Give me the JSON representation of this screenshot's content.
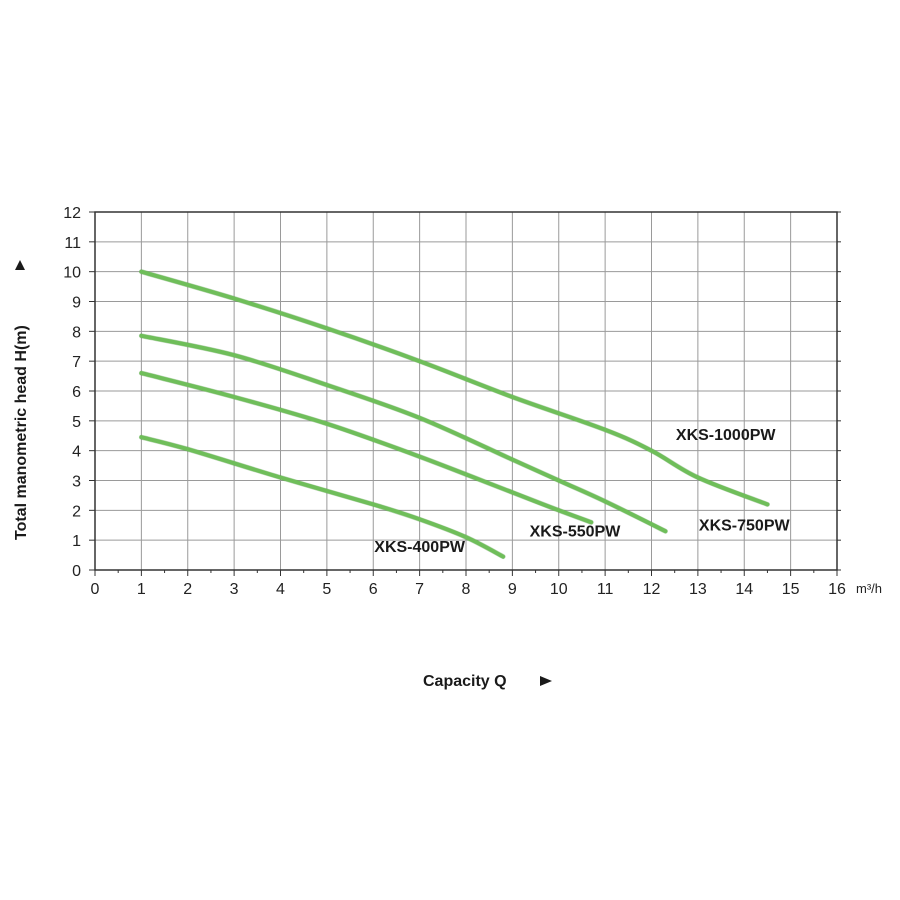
{
  "chart_data": {
    "type": "line",
    "xlabel": "Capacity Q",
    "ylabel": "Total manometric head H(m)",
    "x_unit": "m³/h",
    "xlim": [
      0,
      16
    ],
    "ylim": [
      0,
      12
    ],
    "x_ticks": [
      0,
      1,
      2,
      3,
      4,
      5,
      6,
      7,
      8,
      9,
      10,
      11,
      12,
      13,
      14,
      15,
      16
    ],
    "y_ticks": [
      0,
      1,
      2,
      3,
      4,
      5,
      6,
      7,
      8,
      9,
      10,
      11,
      12
    ],
    "grid": true,
    "line_color": "#6fbe5a",
    "series": [
      {
        "name": "XKS-1000PW",
        "x": [
          1,
          3,
          5,
          7,
          9,
          11,
          12,
          13,
          14.5
        ],
        "y": [
          10,
          9.1,
          8.1,
          7.0,
          5.8,
          4.7,
          4.0,
          3.1,
          2.2
        ]
      },
      {
        "name": "XKS-750PW",
        "x": [
          1,
          3,
          5,
          7,
          9,
          10,
          11,
          12.3
        ],
        "y": [
          7.85,
          7.2,
          6.2,
          5.1,
          3.7,
          3.0,
          2.3,
          1.3
        ]
      },
      {
        "name": "XKS-550PW",
        "x": [
          1,
          3,
          5,
          7,
          9,
          10,
          10.7
        ],
        "y": [
          6.6,
          5.8,
          4.9,
          3.8,
          2.6,
          2.0,
          1.6
        ]
      },
      {
        "name": "XKS-400PW",
        "x": [
          1,
          2,
          4,
          6,
          7,
          8,
          8.8
        ],
        "y": [
          4.45,
          4.05,
          3.1,
          2.2,
          1.7,
          1.1,
          0.45
        ]
      }
    ]
  }
}
